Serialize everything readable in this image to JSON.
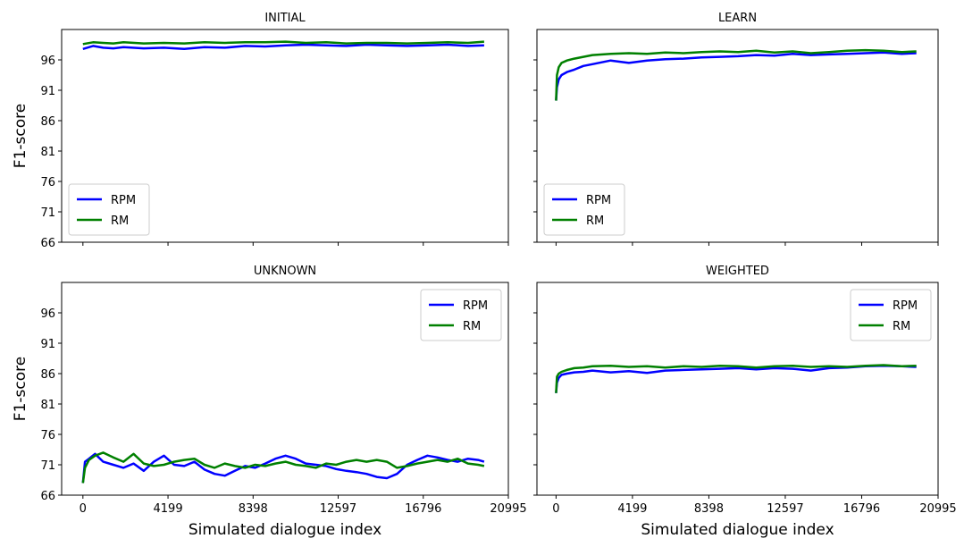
{
  "chart_data": [
    {
      "type": "line",
      "title": "INITIAL",
      "xlabel": "",
      "ylabel": "F1-score",
      "xlim": [
        -1050,
        20995
      ],
      "ylim": [
        66,
        101
      ],
      "xticks": [
        0,
        4199,
        8398,
        12597,
        16796,
        20995
      ],
      "yticks": [
        66,
        71,
        76,
        81,
        86,
        91,
        96
      ],
      "grid": false,
      "legend_position": "lower-left",
      "series": [
        {
          "name": "RPM",
          "color": "#0000ff",
          "x": [
            0,
            500,
            1000,
            1500,
            2000,
            3000,
            4000,
            5000,
            6000,
            7000,
            8000,
            9000,
            10000,
            11000,
            12000,
            13000,
            14000,
            15000,
            16000,
            17000,
            18000,
            19000,
            19800
          ],
          "y": [
            97.8,
            98.3,
            98.0,
            97.9,
            98.1,
            97.9,
            98.0,
            97.8,
            98.1,
            98.0,
            98.3,
            98.2,
            98.4,
            98.5,
            98.4,
            98.3,
            98.5,
            98.4,
            98.3,
            98.4,
            98.5,
            98.3,
            98.4
          ]
        },
        {
          "name": "RM",
          "color": "#008000",
          "x": [
            0,
            500,
            1000,
            1500,
            2000,
            3000,
            4000,
            5000,
            6000,
            7000,
            8000,
            9000,
            10000,
            11000,
            12000,
            13000,
            14000,
            15000,
            16000,
            17000,
            18000,
            19000,
            19800
          ],
          "y": [
            98.6,
            98.9,
            98.8,
            98.7,
            98.9,
            98.7,
            98.8,
            98.7,
            98.9,
            98.8,
            98.9,
            98.9,
            99.0,
            98.8,
            98.9,
            98.7,
            98.8,
            98.8,
            98.7,
            98.8,
            98.9,
            98.8,
            99.0
          ]
        }
      ]
    },
    {
      "type": "line",
      "title": "LEARN",
      "xlabel": "",
      "ylabel": "",
      "xlim": [
        -1050,
        20995
      ],
      "ylim": [
        66,
        101
      ],
      "xticks": [
        0,
        4199,
        8398,
        12597,
        16796,
        20995
      ],
      "yticks": [
        66,
        71,
        76,
        81,
        86,
        91,
        96
      ],
      "grid": false,
      "legend_position": "lower-left",
      "series": [
        {
          "name": "RPM",
          "color": "#0000ff",
          "x": [
            0,
            50,
            150,
            300,
            600,
            1000,
            1500,
            2000,
            3000,
            4000,
            5000,
            6000,
            7000,
            8000,
            9000,
            10000,
            11000,
            12000,
            13000,
            14000,
            15000,
            16000,
            17000,
            18000,
            19000,
            19800
          ],
          "y": [
            89.3,
            91.5,
            92.8,
            93.5,
            94.0,
            94.4,
            95.0,
            95.3,
            95.9,
            95.5,
            95.9,
            96.1,
            96.2,
            96.4,
            96.5,
            96.6,
            96.8,
            96.7,
            97.0,
            96.8,
            96.9,
            97.0,
            97.1,
            97.2,
            97.0,
            97.1
          ]
        },
        {
          "name": "RM",
          "color": "#008000",
          "x": [
            0,
            50,
            150,
            300,
            600,
            1000,
            1500,
            2000,
            3000,
            4000,
            5000,
            6000,
            7000,
            8000,
            9000,
            10000,
            11000,
            12000,
            13000,
            14000,
            15000,
            16000,
            17000,
            18000,
            19000,
            19800
          ],
          "y": [
            89.3,
            93.5,
            94.8,
            95.5,
            95.9,
            96.2,
            96.5,
            96.8,
            97.0,
            97.1,
            97.0,
            97.2,
            97.1,
            97.3,
            97.4,
            97.3,
            97.5,
            97.2,
            97.4,
            97.1,
            97.3,
            97.5,
            97.6,
            97.5,
            97.3,
            97.4
          ]
        }
      ]
    },
    {
      "type": "line",
      "title": "UNKNOWN",
      "xlabel": "Simulated dialogue index",
      "ylabel": "F1-score",
      "xlim": [
        -1050,
        20995
      ],
      "ylim": [
        66,
        101
      ],
      "xticks": [
        0,
        4199,
        8398,
        12597,
        16796,
        20995
      ],
      "yticks": [
        66,
        71,
        76,
        81,
        86,
        91,
        96
      ],
      "grid": false,
      "legend_position": "upper-right",
      "series": [
        {
          "name": "RPM",
          "color": "#0000ff",
          "x": [
            0,
            100,
            300,
            600,
            1000,
            1500,
            2000,
            2500,
            3000,
            3500,
            4000,
            4500,
            5000,
            5500,
            6000,
            6500,
            7000,
            7500,
            8000,
            8500,
            9000,
            9500,
            10000,
            10500,
            11000,
            11500,
            12000,
            12500,
            13000,
            13500,
            14000,
            14500,
            15000,
            15500,
            16000,
            16500,
            17000,
            17500,
            18000,
            18500,
            19000,
            19500,
            19800
          ],
          "y": [
            68.0,
            71.5,
            72.0,
            72.8,
            71.5,
            71.0,
            70.5,
            71.2,
            70.0,
            71.5,
            72.5,
            71.0,
            70.8,
            71.5,
            70.2,
            69.5,
            69.2,
            70.0,
            70.8,
            70.5,
            71.2,
            72.0,
            72.5,
            72.0,
            71.2,
            71.0,
            70.8,
            70.3,
            70.0,
            69.8,
            69.5,
            69.0,
            68.8,
            69.5,
            71.0,
            71.8,
            72.5,
            72.2,
            71.8,
            71.5,
            72.0,
            71.8,
            71.5
          ]
        },
        {
          "name": "RM",
          "color": "#008000",
          "x": [
            0,
            100,
            300,
            600,
            1000,
            1500,
            2000,
            2500,
            3000,
            3500,
            4000,
            4500,
            5000,
            5500,
            6000,
            6500,
            7000,
            7500,
            8000,
            8500,
            9000,
            9500,
            10000,
            10500,
            11000,
            11500,
            12000,
            12500,
            13000,
            13500,
            14000,
            14500,
            15000,
            15500,
            16000,
            16500,
            17000,
            17500,
            18000,
            18500,
            19000,
            19500,
            19800
          ],
          "y": [
            68.0,
            70.5,
            71.8,
            72.5,
            73.0,
            72.2,
            71.5,
            72.8,
            71.2,
            70.8,
            71.0,
            71.5,
            71.8,
            72.0,
            71.0,
            70.5,
            71.2,
            70.8,
            70.5,
            71.0,
            70.8,
            71.2,
            71.5,
            71.0,
            70.8,
            70.5,
            71.2,
            71.0,
            71.5,
            71.8,
            71.5,
            71.8,
            71.5,
            70.5,
            70.8,
            71.2,
            71.5,
            71.8,
            71.5,
            72.0,
            71.2,
            71.0,
            70.8
          ]
        }
      ]
    },
    {
      "type": "line",
      "title": "WEIGHTED",
      "xlabel": "Simulated dialogue index",
      "ylabel": "",
      "xlim": [
        -1050,
        20995
      ],
      "ylim": [
        66,
        101
      ],
      "xticks": [
        0,
        4199,
        8398,
        12597,
        16796,
        20995
      ],
      "yticks": [
        66,
        71,
        76,
        81,
        86,
        91,
        96
      ],
      "grid": false,
      "legend_position": "upper-right",
      "series": [
        {
          "name": "RPM",
          "color": "#0000ff",
          "x": [
            0,
            50,
            150,
            300,
            600,
            1000,
            1500,
            2000,
            3000,
            4000,
            5000,
            6000,
            7000,
            8000,
            9000,
            10000,
            11000,
            12000,
            13000,
            14000,
            15000,
            16000,
            17000,
            18000,
            19000,
            19800
          ],
          "y": [
            82.8,
            84.5,
            85.3,
            85.8,
            86.0,
            86.2,
            86.3,
            86.5,
            86.2,
            86.4,
            86.1,
            86.5,
            86.6,
            86.7,
            86.8,
            86.9,
            86.7,
            86.9,
            86.8,
            86.5,
            86.9,
            87.0,
            87.2,
            87.3,
            87.2,
            87.1
          ]
        },
        {
          "name": "RM",
          "color": "#008000",
          "x": [
            0,
            50,
            150,
            300,
            600,
            1000,
            1500,
            2000,
            3000,
            4000,
            5000,
            6000,
            7000,
            8000,
            9000,
            10000,
            11000,
            12000,
            13000,
            14000,
            15000,
            16000,
            17000,
            18000,
            19000,
            19800
          ],
          "y": [
            82.8,
            85.5,
            86.0,
            86.3,
            86.6,
            86.9,
            87.0,
            87.2,
            87.3,
            87.1,
            87.2,
            87.0,
            87.2,
            87.1,
            87.3,
            87.2,
            87.0,
            87.2,
            87.3,
            87.1,
            87.2,
            87.1,
            87.3,
            87.4,
            87.2,
            87.3
          ]
        }
      ]
    }
  ]
}
